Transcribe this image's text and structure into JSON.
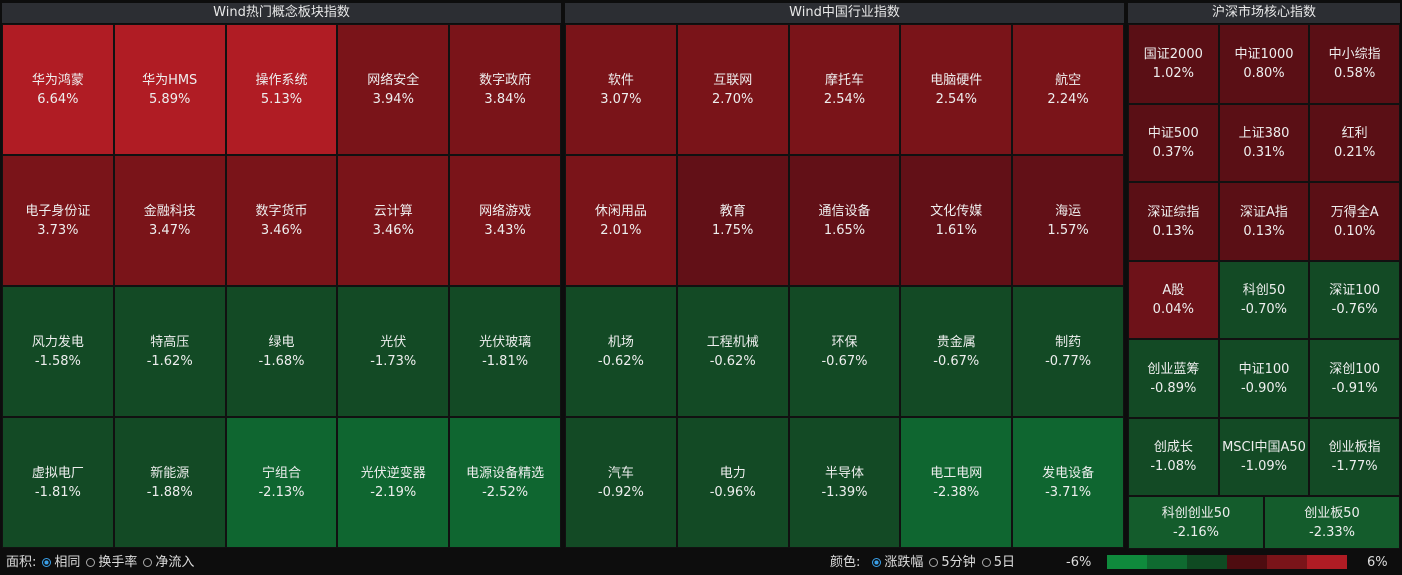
{
  "panels": [
    {
      "title": "Wind热门概念板块指数",
      "columns": 5,
      "cells": [
        {
          "name": "华为鸿蒙",
          "change": "6.64%",
          "color": "#b01c24"
        },
        {
          "name": "华为HMS",
          "change": "5.89%",
          "color": "#b01c24"
        },
        {
          "name": "操作系统",
          "change": "5.13%",
          "color": "#b01c24"
        },
        {
          "name": "网络安全",
          "change": "3.94%",
          "color": "#7a1419"
        },
        {
          "name": "数字政府",
          "change": "3.84%",
          "color": "#7a1419"
        },
        {
          "name": "电子身份证",
          "change": "3.73%",
          "color": "#7a1419"
        },
        {
          "name": "金融科技",
          "change": "3.47%",
          "color": "#7a1419"
        },
        {
          "name": "数字货币",
          "change": "3.46%",
          "color": "#7a1419"
        },
        {
          "name": "云计算",
          "change": "3.46%",
          "color": "#7a1419"
        },
        {
          "name": "网络游戏",
          "change": "3.43%",
          "color": "#7a1419"
        },
        {
          "name": "风力发电",
          "change": "-1.58%",
          "color": "#134a25"
        },
        {
          "name": "特高压",
          "change": "-1.62%",
          "color": "#134a25"
        },
        {
          "name": "绿电",
          "change": "-1.68%",
          "color": "#134a25"
        },
        {
          "name": "光伏",
          "change": "-1.73%",
          "color": "#134a25"
        },
        {
          "name": "光伏玻璃",
          "change": "-1.81%",
          "color": "#134a25"
        },
        {
          "name": "虚拟电厂",
          "change": "-1.81%",
          "color": "#134a25"
        },
        {
          "name": "新能源",
          "change": "-1.88%",
          "color": "#134a25"
        },
        {
          "name": "宁组合",
          "change": "-2.13%",
          "color": "#0f6630"
        },
        {
          "name": "光伏逆变器",
          "change": "-2.19%",
          "color": "#0f6630"
        },
        {
          "name": "电源设备精选",
          "change": "-2.52%",
          "color": "#0f6630"
        }
      ]
    },
    {
      "title": "Wind中国行业指数",
      "columns": 5,
      "cells": [
        {
          "name": "软件",
          "change": "3.07%",
          "color": "#7a1419"
        },
        {
          "name": "互联网",
          "change": "2.70%",
          "color": "#7a1419"
        },
        {
          "name": "摩托车",
          "change": "2.54%",
          "color": "#7a1419"
        },
        {
          "name": "电脑硬件",
          "change": "2.54%",
          "color": "#7a1419"
        },
        {
          "name": "航空",
          "change": "2.24%",
          "color": "#7a1419"
        },
        {
          "name": "休闲用品",
          "change": "2.01%",
          "color": "#7a1419"
        },
        {
          "name": "教育",
          "change": "1.75%",
          "color": "#621017"
        },
        {
          "name": "通信设备",
          "change": "1.65%",
          "color": "#621017"
        },
        {
          "name": "文化传媒",
          "change": "1.61%",
          "color": "#621017"
        },
        {
          "name": "海运",
          "change": "1.57%",
          "color": "#621017"
        },
        {
          "name": "机场",
          "change": "-0.62%",
          "color": "#134a25"
        },
        {
          "name": "工程机械",
          "change": "-0.62%",
          "color": "#134a25"
        },
        {
          "name": "环保",
          "change": "-0.67%",
          "color": "#134a25"
        },
        {
          "name": "贵金属",
          "change": "-0.67%",
          "color": "#134a25"
        },
        {
          "name": "制药",
          "change": "-0.77%",
          "color": "#134a25"
        },
        {
          "name": "汽车",
          "change": "-0.92%",
          "color": "#134a25"
        },
        {
          "name": "电力",
          "change": "-0.96%",
          "color": "#134a25"
        },
        {
          "name": "半导体",
          "change": "-1.39%",
          "color": "#134a25"
        },
        {
          "name": "电工电网",
          "change": "-2.38%",
          "color": "#0f6630"
        },
        {
          "name": "发电设备",
          "change": "-3.71%",
          "color": "#0f6630"
        }
      ]
    },
    {
      "title": "沪深市场核心指数",
      "columns": 3,
      "cells": [
        {
          "name": "国证2000",
          "change": "1.02%",
          "color": "#5a0f15"
        },
        {
          "name": "中证1000",
          "change": "0.80%",
          "color": "#5a0f15"
        },
        {
          "name": "中小综指",
          "change": "0.58%",
          "color": "#5a0f15"
        },
        {
          "name": "中证500",
          "change": "0.37%",
          "color": "#5a0f15"
        },
        {
          "name": "上证380",
          "change": "0.31%",
          "color": "#5a0f15"
        },
        {
          "name": "红利",
          "change": "0.21%",
          "color": "#5a0f15"
        },
        {
          "name": "深证综指",
          "change": "0.13%",
          "color": "#5a0f15"
        },
        {
          "name": "深证A指",
          "change": "0.13%",
          "color": "#5a0f15"
        },
        {
          "name": "万得全A",
          "change": "0.10%",
          "color": "#5a0f15"
        },
        {
          "name": "A股",
          "change": "0.04%",
          "color": "#6e1219"
        },
        {
          "name": "科创50",
          "change": "-0.70%",
          "color": "#134a25"
        },
        {
          "name": "深证100",
          "change": "-0.76%",
          "color": "#134a25"
        },
        {
          "name": "创业蓝筹",
          "change": "-0.89%",
          "color": "#134a25"
        },
        {
          "name": "中证100",
          "change": "-0.90%",
          "color": "#134a25"
        },
        {
          "name": "深创100",
          "change": "-0.91%",
          "color": "#134a25"
        },
        {
          "name": "创成长",
          "change": "-1.08%",
          "color": "#134a25"
        },
        {
          "name": "MSCI中国A50",
          "change": "-1.09%",
          "color": "#134a25"
        },
        {
          "name": "创业板指",
          "change": "-1.77%",
          "color": "#134a25"
        },
        {
          "name": "科创创业50",
          "change": "-2.16%",
          "color": "#145c2c"
        },
        {
          "name": "创业板50",
          "change": "-2.33%",
          "color": "#145c2c"
        }
      ]
    }
  ],
  "footer": {
    "area_label": "面积:",
    "area_options": [
      "相同",
      "换手率",
      "净流入"
    ],
    "area_selected": 0,
    "color_label": "颜色:",
    "color_options": [
      "涨跌幅",
      "5分钟",
      "5日"
    ],
    "color_selected": 0,
    "scale_min": "-6%",
    "scale_max": "6%",
    "scale_colors": [
      "#0f8a3c",
      "#0f6a30",
      "#0f4a22",
      "#4e0c10",
      "#7a1419",
      "#b01c24"
    ]
  }
}
